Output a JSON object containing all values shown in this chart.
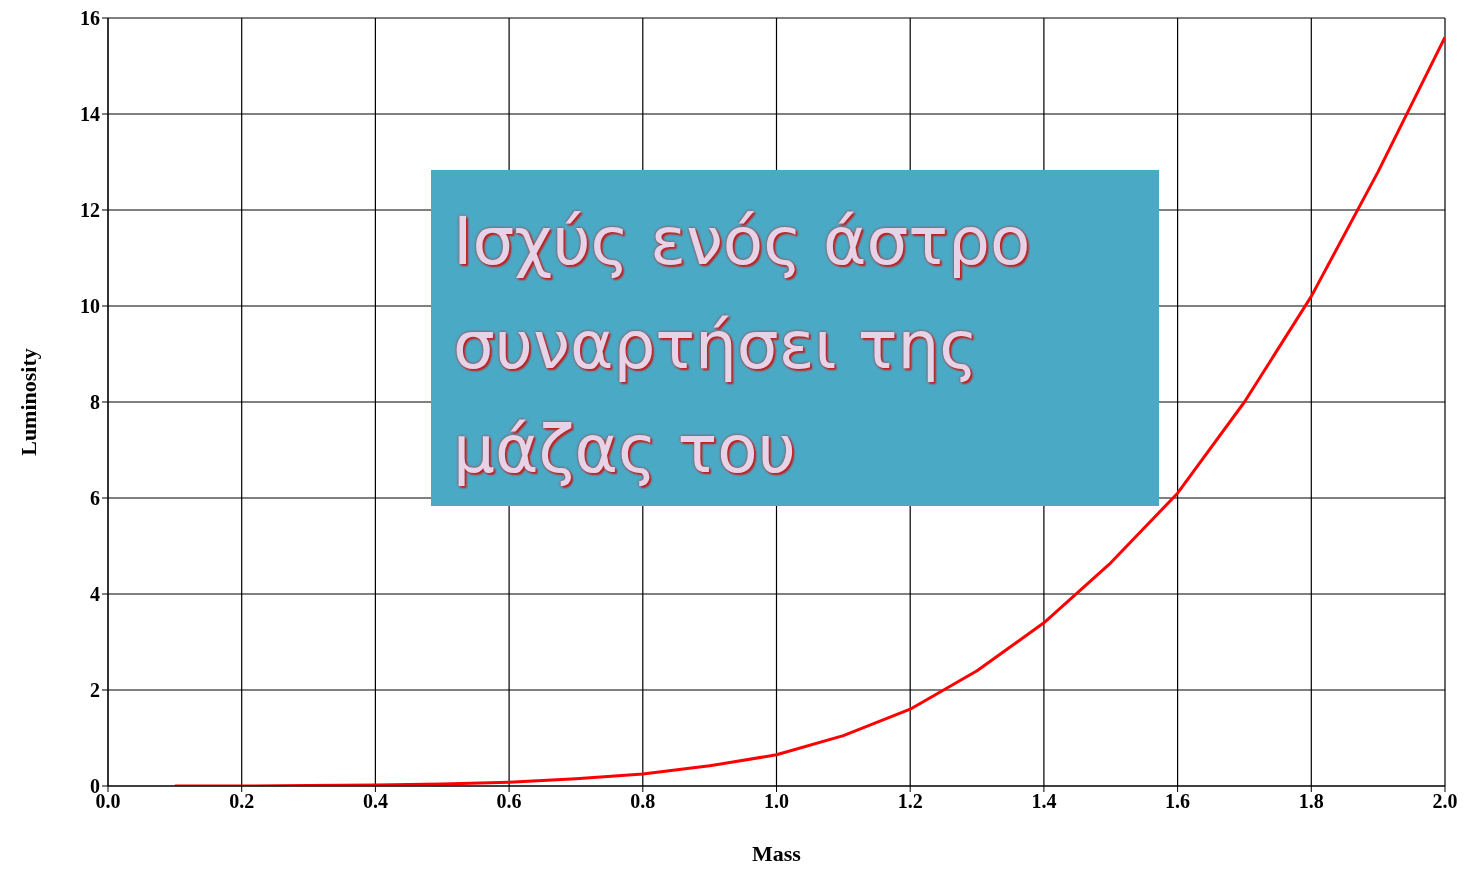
{
  "chart_data": {
    "type": "line",
    "title": "Ισχύς ενός άστρο συναρτήσει της μάζας του",
    "xlabel": "Mass",
    "ylabel": "Luminosity",
    "x": [
      0.1,
      0.2,
      0.3,
      0.4,
      0.5,
      0.6,
      0.7,
      0.8,
      0.9,
      1.0,
      1.1,
      1.2,
      1.3,
      1.4,
      1.5,
      1.6,
      1.7,
      1.8,
      1.9,
      2.0
    ],
    "series": [
      {
        "color": "#ff0000",
        "values": [
          0,
          0,
          0.01,
          0.02,
          0.04,
          0.08,
          0.15,
          0.25,
          0.42,
          0.65,
          1.05,
          1.6,
          2.4,
          3.4,
          4.65,
          6.1,
          8.0,
          10.2,
          12.8,
          15.6
        ]
      }
    ],
    "xlim": [
      0,
      2
    ],
    "xticks": [
      {
        "value": 0,
        "label": "0.0"
      },
      {
        "value": 0.2,
        "label": "0.2"
      },
      {
        "value": 0.4,
        "label": "0.4"
      },
      {
        "value": 0.6,
        "label": "0.6"
      },
      {
        "value": 0.8,
        "label": "0.8"
      },
      {
        "value": 1,
        "label": "1.0"
      },
      {
        "value": 1.2,
        "label": "1.2"
      },
      {
        "value": 1.4,
        "label": "1.4"
      },
      {
        "value": 1.6,
        "label": "1.6"
      },
      {
        "value": 1.8,
        "label": "1.8"
      },
      {
        "value": 2,
        "label": "2.0"
      }
    ],
    "ylim": [
      0,
      16
    ],
    "yticks": [
      0,
      2,
      4,
      6,
      8,
      10,
      12,
      14,
      16
    ],
    "grid": true,
    "marker": "none",
    "line_style": "solid"
  }
}
